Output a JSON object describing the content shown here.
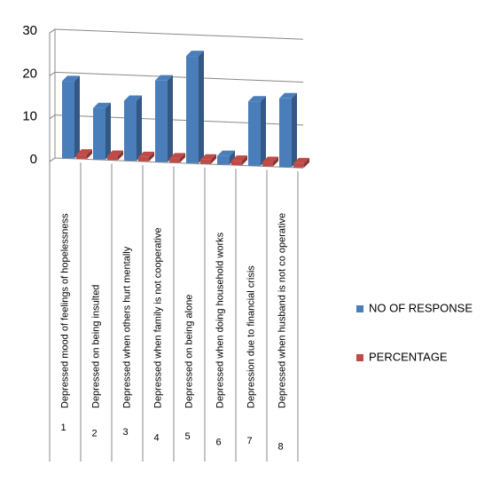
{
  "chart_data": {
    "type": "bar3d",
    "categories": [
      "Depressed mood of feelings of hopelessness",
      "Depressed on being insulted",
      "Depressed when others hurt mentally",
      "Depressed when family is not cooperative",
      "Depressed on being alone",
      "Depressed when doing household works",
      "Depression due to financial crisis",
      "Depressed when husband is not co operative"
    ],
    "category_numbers": [
      "1",
      "2",
      "3",
      "4",
      "5",
      "6",
      "7",
      "8"
    ],
    "series": [
      {
        "name": "NO OF RESPONSE",
        "color": "#4a7ebb",
        "values": [
          18,
          12,
          14,
          19,
          25,
          2,
          15,
          16
        ]
      },
      {
        "name": "PERCENTAGE",
        "color": "#be4b48",
        "values": [
          1,
          1,
          1,
          1,
          1,
          1,
          1,
          1
        ]
      }
    ],
    "ylim": [
      0,
      30
    ],
    "yticks": [
      0,
      10,
      20,
      30
    ],
    "grid": true,
    "legend": "right"
  }
}
